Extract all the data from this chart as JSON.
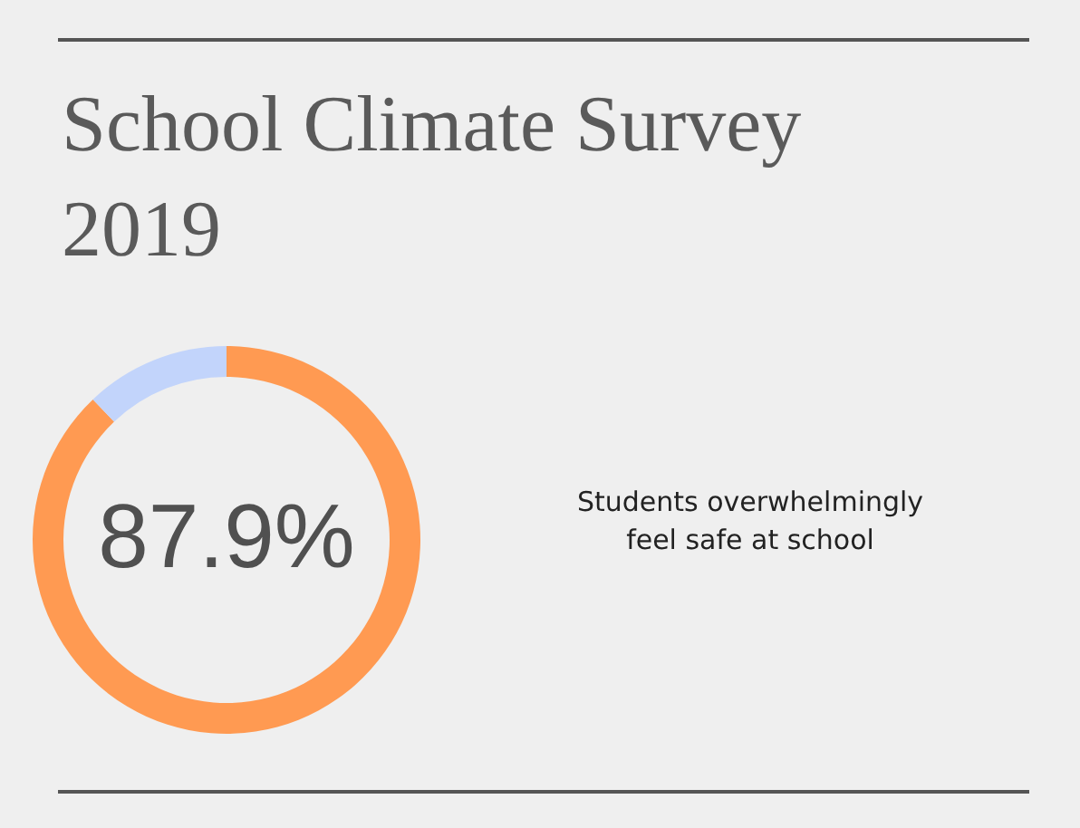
{
  "chart_data": {
    "type": "donut",
    "title": "School Climate Survey\n2019",
    "categories": [
      null,
      null
    ],
    "values": [
      87.9,
      12.1
    ],
    "colors": [
      "#ff9a52",
      "#c2d4fb"
    ],
    "value_labels": [
      "87.9%",
      null
    ],
    "annotations": [
      "Students overwhelmingly\nfeel safe at school"
    ]
  }
}
